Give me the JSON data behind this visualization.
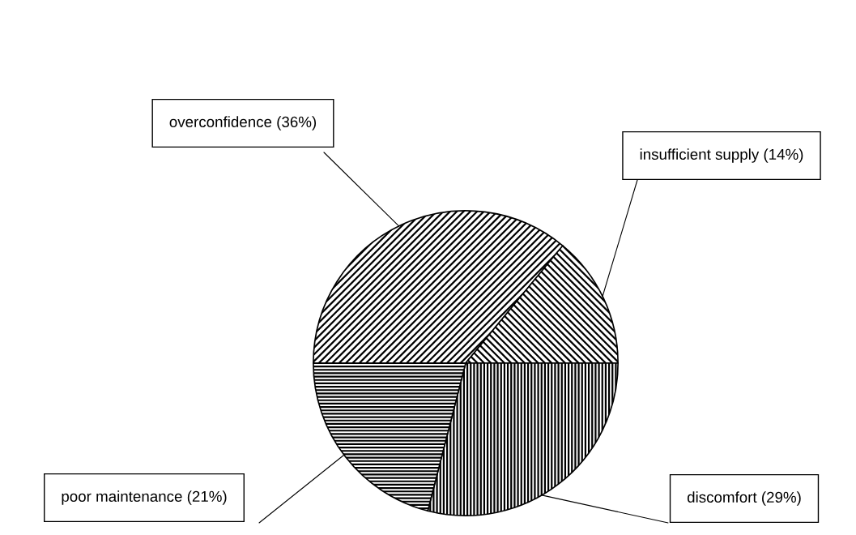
{
  "chart_data": {
    "type": "pie",
    "categories": [
      "overconfidence (36%)",
      "insufficient supply (14%)",
      "discomfort (29%)",
      "poor maintenance (21%)"
    ],
    "values": [
      36,
      14,
      29,
      21
    ]
  }
}
